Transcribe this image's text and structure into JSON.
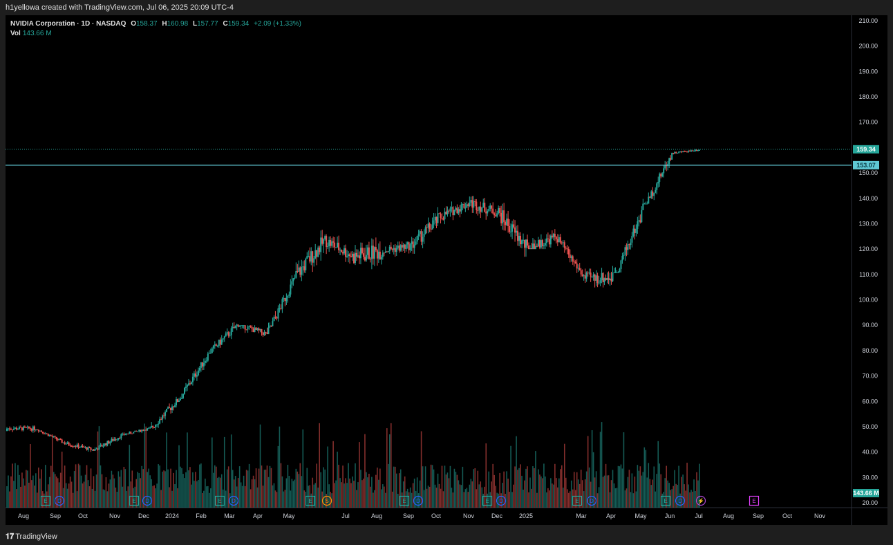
{
  "header": {
    "credit": "h1yellowa created with TradingView.com, Jul 06, 2025 20:09 UTC-4"
  },
  "legend": {
    "symbol": "NVIDIA Corporation · 1D · NASDAQ",
    "o_label": "O",
    "o": "158.37",
    "h_label": "H",
    "h": "160.98",
    "l_label": "L",
    "l": "157.77",
    "c_label": "C",
    "c": "159.34",
    "change": "+2.09 (+1.33%)",
    "vol_label": "Vol",
    "vol": "143.66 M"
  },
  "price_axis": {
    "ticks": [
      "210.00",
      "200.00",
      "190.00",
      "180.00",
      "170.00",
      "160.00",
      "150.00",
      "140.00",
      "130.00",
      "120.00",
      "110.00",
      "100.00",
      "90.00",
      "80.00",
      "70.00",
      "60.00",
      "50.00",
      "40.00",
      "30.00",
      "20.00"
    ],
    "current_price_label": "159.34",
    "hline_label": "153.07",
    "volume_label": "143.66 M"
  },
  "time_axis": {
    "labels": [
      "Aug",
      "Sep",
      "Oct",
      "Nov",
      "Dec",
      "2024",
      "Feb",
      "Mar",
      "Apr",
      "May",
      "Jul",
      "Aug",
      "Sep",
      "Oct",
      "Nov",
      "Dec",
      "2025",
      "Mar",
      "Apr",
      "May",
      "Jun",
      "Jul",
      "Aug",
      "Sep",
      "Oct",
      "Nov"
    ]
  },
  "events": [
    "E",
    "D",
    "E",
    "D",
    "E",
    "D",
    "E",
    "S",
    "E",
    "D",
    "E",
    "D",
    "E",
    "D",
    "E",
    "D",
    "⚡",
    "E"
  ],
  "colors": {
    "up": "#26a69a",
    "down": "#ef5350",
    "hline": "#5fc8d4",
    "bg": "#000000"
  },
  "footer": {
    "logo_icon": "tradingview-logo-icon",
    "brand": "TradingView"
  },
  "chart_data": {
    "type": "candlestick",
    "symbol": "NVDA",
    "interval": "1D",
    "ylim": [
      20,
      210
    ],
    "horizontal_line": 153.07,
    "last_close": 159.34,
    "x": [
      "2023-08",
      "2023-09",
      "2023-10",
      "2023-11",
      "2023-12",
      "2024-01",
      "2024-02",
      "2024-03",
      "2024-04",
      "2024-05",
      "2024-06",
      "2024-07",
      "2024-08",
      "2024-09",
      "2024-10",
      "2024-11",
      "2024-12",
      "2025-01",
      "2025-02",
      "2025-03",
      "2025-04",
      "2025-05",
      "2025-06",
      "2025-07"
    ],
    "close": [
      49.3,
      43.5,
      40.8,
      46.8,
      49.5,
      61.5,
      79.1,
      90.4,
      86.4,
      109.6,
      123.5,
      117.0,
      119.4,
      121.4,
      132.8,
      138.3,
      134.3,
      120.1,
      124.9,
      108.4,
      108.9,
      135.1,
      157.8,
      159.3
    ],
    "high": [
      50.5,
      49.0,
      47.5,
      50.5,
      50.5,
      63.5,
      79.5,
      97.4,
      90.0,
      110.0,
      140.8,
      136.1,
      131.3,
      123.0,
      144.4,
      152.9,
      152.9,
      153.1,
      143.4,
      126.0,
      115.1,
      139.0,
      158.7,
      160.98
    ],
    "low": [
      40.4,
      42.0,
      39.2,
      40.5,
      45.0,
      47.3,
      60.9,
      79.0,
      75.6,
      86.5,
      103.5,
      106.0,
      90.7,
      101.8,
      115.0,
      129.6,
      127.5,
      116.3,
      120.0,
      104.8,
      86.6,
      110.8,
      137.9,
      157.0
    ]
  }
}
